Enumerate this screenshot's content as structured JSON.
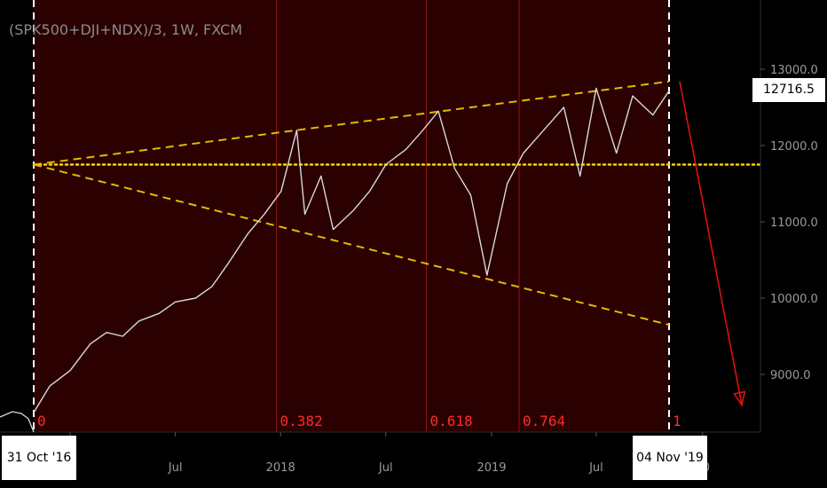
{
  "chart_data": {
    "type": "line",
    "title": "(SPK500+DJI+NDX)/3, 1W, FXCM",
    "last_price": "12716.5",
    "date_start": "31 Oct '16",
    "date_end": "04 Nov '19",
    "y_ticks": [
      "13000.0",
      "12000.0",
      "11000.0",
      "10000.0",
      "9000.0"
    ],
    "x_ticks": [
      "17",
      "Jul",
      "2018",
      "Jul",
      "2019",
      "Jul",
      "20"
    ],
    "fib_labels": [
      "0",
      "0.382",
      "0.618",
      "0.764",
      "1"
    ],
    "ylim": [
      8200,
      13400
    ],
    "grid": false,
    "colors": {
      "background": "#000000",
      "range_fill": "#2a0000",
      "price_line": "#d9d9d9",
      "fib_line": "#8a1515",
      "fib_text": "#ff2a2a",
      "trendline": "#e6b800",
      "hline": "#ffd400",
      "arrow": "#e01010"
    },
    "x": [
      "2016-10-31",
      "2016-11-28",
      "2017-01-02",
      "2017-02-06",
      "2017-03-06",
      "2017-04-03",
      "2017-05-01",
      "2017-06-05",
      "2017-07-03",
      "2017-08-07",
      "2017-09-04",
      "2017-10-02",
      "2017-11-06",
      "2017-12-04",
      "2018-01-02",
      "2018-01-29",
      "2018-02-12",
      "2018-03-12",
      "2018-04-02",
      "2018-05-07",
      "2018-06-04",
      "2018-07-02",
      "2018-08-06",
      "2018-09-04",
      "2018-10-01",
      "2018-10-29",
      "2018-11-26",
      "2018-12-24",
      "2019-01-28",
      "2019-02-25",
      "2019-04-01",
      "2019-05-06",
      "2019-06-03",
      "2019-07-01",
      "2019-08-05",
      "2019-09-02",
      "2019-10-07",
      "2019-11-04"
    ],
    "values": [
      8500,
      8850,
      9050,
      9400,
      9550,
      9500,
      9700,
      9800,
      9950,
      10000,
      10150,
      10450,
      10850,
      11100,
      11400,
      12200,
      11100,
      11600,
      10900,
      11150,
      11400,
      11750,
      11950,
      12200,
      12450,
      11700,
      11350,
      10300,
      11500,
      11900,
      12200,
      12500,
      11600,
      12750,
      11900,
      12650,
      12400,
      12716.5
    ],
    "trendlines": [
      {
        "from": [
          "2016-10-31",
          11750
        ],
        "to": [
          "2019-11-04",
          12840
        ],
        "style": "dashed"
      },
      {
        "from": [
          "2016-10-31",
          11750
        ],
        "to": [
          "2019-11-04",
          9650
        ],
        "style": "dashed"
      }
    ],
    "hline": 11750,
    "projection": {
      "from": [
        "2019-11-11",
        12840
      ],
      "to": [
        "2020-03-02",
        8600
      ]
    }
  }
}
